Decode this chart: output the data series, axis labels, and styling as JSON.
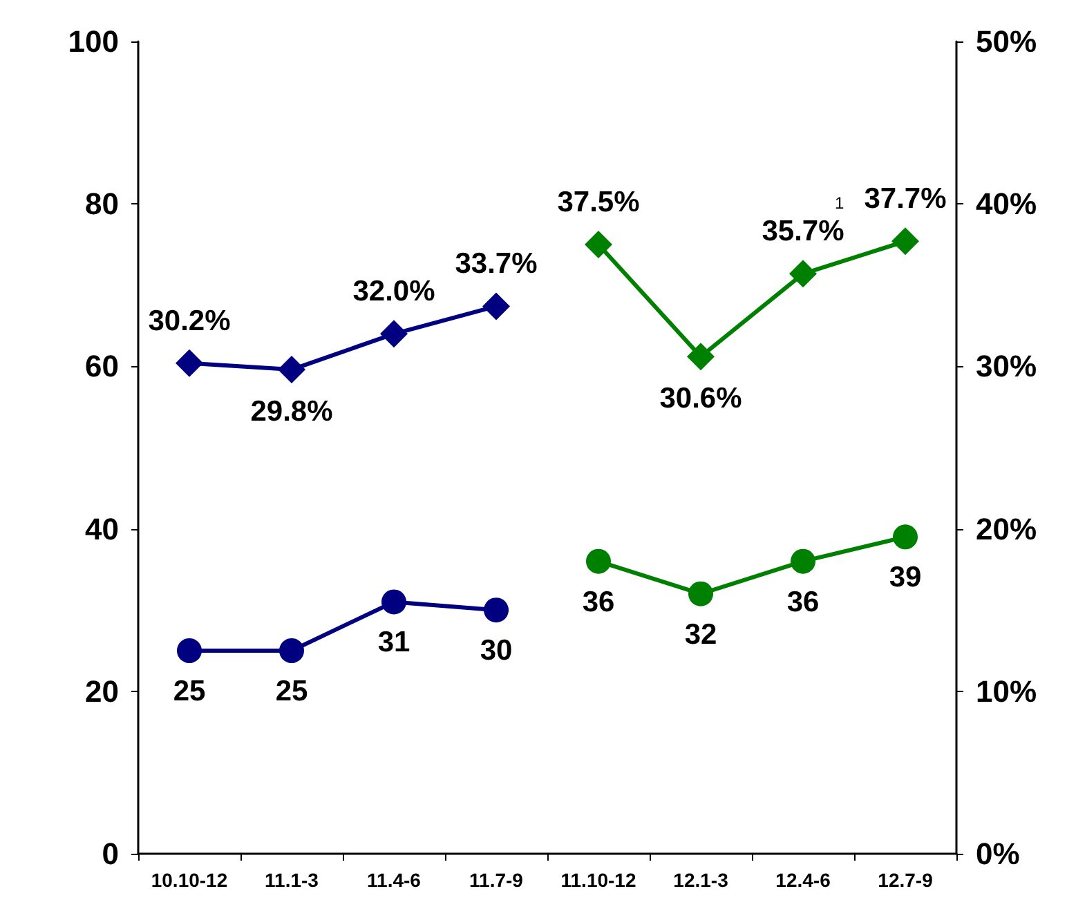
{
  "chart_data": {
    "type": "line",
    "categories": [
      "10.10-12",
      "11.1-3",
      "11.4-6",
      "11.7-9",
      "11.10-12",
      "12.1-3",
      "12.4-6",
      "12.7-9"
    ],
    "series": [
      {
        "color": "#000080",
        "marker": "circle",
        "values": [
          25,
          25,
          31,
          30,
          null,
          null,
          null,
          null
        ],
        "value_labels": [
          "25",
          "25",
          "31",
          "30",
          null,
          null,
          null,
          null
        ]
      },
      {
        "color": "#008000",
        "marker": "circle",
        "values": [
          null,
          null,
          null,
          null,
          36,
          32,
          36,
          39
        ],
        "value_labels": [
          null,
          null,
          null,
          null,
          "36",
          "32",
          "36",
          "39"
        ]
      },
      {
        "color": "#000080",
        "marker": "diamond",
        "axis": "y2",
        "values": [
          30.2,
          29.8,
          32.0,
          33.7,
          null,
          null,
          null,
          null
        ],
        "value_labels": [
          "30.2%",
          "29.8%",
          "32.0%",
          "33.7%",
          null,
          null,
          null,
          null
        ]
      },
      {
        "color": "#008000",
        "marker": "diamond",
        "axis": "y2",
        "values": [
          null,
          null,
          null,
          null,
          37.5,
          30.6,
          35.7,
          37.7
        ],
        "value_labels": [
          null,
          null,
          null,
          null,
          "37.5%",
          "30.6%",
          "35.7%",
          "37.7%"
        ]
      }
    ],
    "ylim": [
      0,
      100
    ],
    "yticks": [
      0,
      20,
      40,
      60,
      80,
      100
    ],
    "y2lim": [
      0,
      50
    ],
    "y2ticks": [
      {
        "value": 0,
        "label": "0%"
      },
      {
        "value": 10,
        "label": "10%"
      },
      {
        "value": 20,
        "label": "20%"
      },
      {
        "value": 30,
        "label": "30%"
      },
      {
        "value": 40,
        "label": "40%"
      },
      {
        "value": 50,
        "label": "50%"
      }
    ],
    "annotations": [
      "1"
    ],
    "grid": false
  }
}
